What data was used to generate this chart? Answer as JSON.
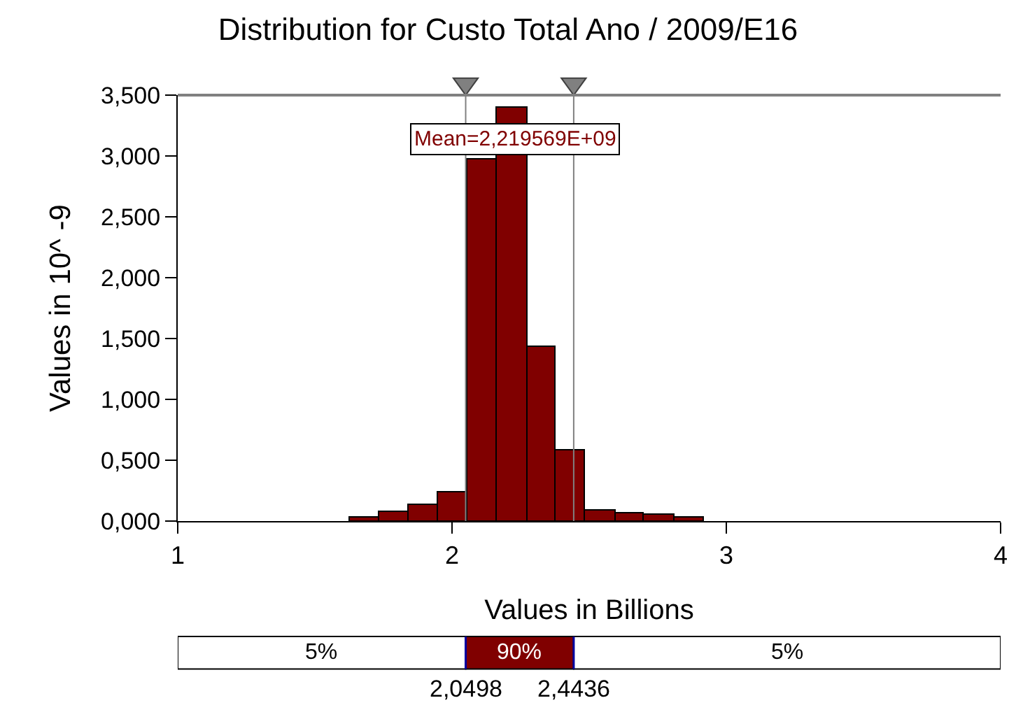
{
  "chart_data": [
    {
      "type": "histogram",
      "title": "Distribution for Custo Total Ano / 2009/E16",
      "xlabel": "Values in Billions",
      "ylabel": "Values in 10^ -9",
      "bins": [
        1.63,
        1.735,
        1.84,
        1.95,
        2.057,
        2.165,
        2.273,
        2.38,
        2.487,
        2.595,
        2.7,
        2.81,
        2.92
      ],
      "values": [
        0.03,
        0.07,
        0.13,
        0.24,
        2.97,
        3.4,
        1.43,
        0.58,
        0.09,
        0.06,
        0.05,
        0.03
      ],
      "color": "#800000",
      "xlim": [
        1,
        4
      ],
      "xticks": [
        1,
        2,
        3,
        4
      ],
      "ylim": [
        0,
        3.5
      ],
      "yticks": [
        {
          "value": 0,
          "label": "0,000"
        },
        {
          "value": 0.5,
          "label": "0,500"
        },
        {
          "value": 1,
          "label": "1,000"
        },
        {
          "value": 1.5,
          "label": "1,500"
        },
        {
          "value": 2,
          "label": "2,000"
        },
        {
          "value": 2.5,
          "label": "2,500"
        },
        {
          "value": 3,
          "label": "3,000"
        },
        {
          "value": 3.5,
          "label": "3,500"
        }
      ],
      "ref_lines": [
        {
          "axis": "x",
          "value": 2.0498,
          "color": "#808080"
        },
        {
          "axis": "x",
          "value": 2.4436,
          "color": "#808080"
        }
      ],
      "annotations": [
        "Mean=2,219569E+09"
      ]
    },
    {
      "type": "other",
      "color": "#800000",
      "annotations": [
        "5%",
        "90%",
        "5%",
        "2,0498",
        "2,4436"
      ]
    }
  ]
}
